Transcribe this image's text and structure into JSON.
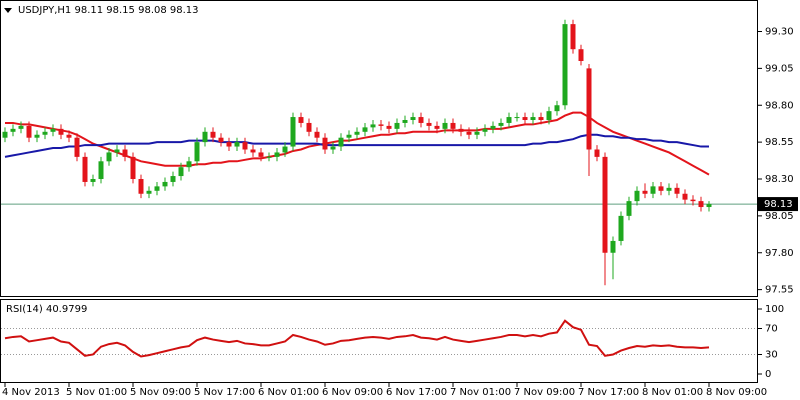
{
  "chart_data": [
    {
      "type": "candlestick",
      "title": "USDJPY,H1  98.11 98.15 98.08 98.13",
      "categories": [
        "4 Nov 2013",
        null,
        null,
        null,
        null,
        null,
        null,
        null,
        "5 Nov 01:00",
        null,
        null,
        null,
        null,
        null,
        null,
        null,
        "5 Nov 09:00",
        null,
        null,
        null,
        null,
        null,
        null,
        null,
        "5 Nov 17:00",
        null,
        null,
        null,
        null,
        null,
        null,
        null,
        "6 Nov 01:00",
        null,
        null,
        null,
        null,
        null,
        null,
        null,
        "6 Nov 09:00",
        null,
        null,
        null,
        null,
        null,
        null,
        null,
        "6 Nov 17:00",
        null,
        null,
        null,
        null,
        null,
        null,
        null,
        "7 Nov 01:00",
        null,
        null,
        null,
        null,
        null,
        null,
        null,
        "7 Nov 09:00",
        null,
        null,
        null,
        null,
        null,
        null,
        null,
        "7 Nov 17:00",
        null,
        null,
        null,
        null,
        null,
        null,
        null,
        "8 Nov 01:00",
        null,
        null,
        null,
        null,
        null,
        null,
        null,
        "8 Nov 09:00"
      ],
      "open": [
        98.58,
        98.62,
        98.64,
        98.66,
        98.58,
        98.6,
        98.62,
        98.64,
        98.6,
        98.58,
        98.45,
        98.28,
        98.3,
        98.42,
        98.48,
        98.5,
        98.45,
        98.3,
        98.2,
        98.22,
        98.25,
        98.28,
        98.32,
        98.38,
        98.42,
        98.55,
        98.62,
        98.58,
        98.55,
        98.52,
        98.55,
        98.5,
        98.48,
        98.45,
        98.45,
        98.48,
        98.52,
        98.72,
        98.68,
        98.62,
        98.58,
        98.5,
        98.52,
        98.58,
        98.6,
        98.62,
        98.65,
        98.67,
        98.66,
        98.64,
        98.68,
        98.7,
        98.72,
        98.68,
        98.66,
        98.64,
        98.68,
        98.64,
        98.62,
        98.6,
        98.62,
        98.64,
        98.66,
        98.68,
        98.72,
        98.72,
        98.7,
        98.72,
        98.7,
        98.76,
        98.8,
        99.35,
        99.18,
        99.05,
        98.5,
        98.45,
        97.8,
        97.88,
        98.05,
        98.15,
        98.22,
        98.2,
        98.25,
        98.22,
        98.24,
        98.2,
        98.16,
        98.15,
        98.11
      ],
      "high": [
        98.65,
        98.67,
        98.69,
        98.69,
        98.63,
        98.65,
        98.67,
        98.67,
        98.63,
        98.61,
        98.48,
        98.33,
        98.45,
        98.51,
        98.53,
        98.53,
        98.48,
        98.33,
        98.25,
        98.28,
        98.31,
        98.35,
        98.41,
        98.45,
        98.58,
        98.65,
        98.65,
        98.61,
        98.58,
        98.58,
        98.58,
        98.53,
        98.51,
        98.48,
        98.51,
        98.55,
        98.75,
        98.75,
        98.71,
        98.65,
        98.61,
        98.55,
        98.61,
        98.63,
        98.65,
        98.68,
        98.7,
        98.7,
        98.69,
        98.71,
        98.73,
        98.75,
        98.75,
        98.71,
        98.69,
        98.71,
        98.71,
        98.67,
        98.65,
        98.65,
        98.67,
        98.69,
        98.71,
        98.75,
        98.75,
        98.75,
        98.75,
        98.75,
        98.79,
        98.83,
        99.38,
        99.38,
        99.21,
        99.08,
        98.53,
        98.48,
        97.91,
        98.08,
        98.18,
        98.25,
        98.27,
        98.28,
        98.28,
        98.27,
        98.27,
        98.23,
        98.19,
        98.18,
        98.15
      ],
      "low": [
        98.55,
        98.59,
        98.61,
        98.55,
        98.55,
        98.57,
        98.59,
        98.57,
        98.55,
        98.42,
        98.25,
        98.25,
        98.27,
        98.39,
        98.45,
        98.42,
        98.27,
        98.17,
        98.17,
        98.19,
        98.22,
        98.25,
        98.29,
        98.35,
        98.39,
        98.52,
        98.55,
        98.52,
        98.49,
        98.49,
        98.47,
        98.45,
        98.42,
        98.42,
        98.42,
        98.45,
        98.49,
        98.65,
        98.59,
        98.55,
        98.47,
        98.47,
        98.49,
        98.55,
        98.57,
        98.59,
        98.62,
        98.63,
        98.61,
        98.61,
        98.65,
        98.67,
        98.65,
        98.63,
        98.61,
        98.61,
        98.61,
        98.59,
        98.57,
        98.57,
        98.59,
        98.61,
        98.63,
        98.65,
        98.69,
        98.67,
        98.67,
        98.67,
        98.67,
        98.73,
        98.77,
        99.15,
        99.07,
        98.32,
        98.42,
        97.58,
        97.62,
        97.85,
        98.02,
        98.12,
        98.17,
        98.17,
        98.19,
        98.19,
        98.17,
        98.13,
        98.12,
        98.08,
        98.08
      ],
      "close": [
        98.62,
        98.64,
        98.66,
        98.58,
        98.6,
        98.62,
        98.64,
        98.6,
        98.58,
        98.45,
        98.28,
        98.3,
        98.42,
        98.48,
        98.5,
        98.45,
        98.3,
        98.2,
        98.22,
        98.25,
        98.28,
        98.32,
        98.38,
        98.42,
        98.55,
        98.62,
        98.58,
        98.55,
        98.52,
        98.55,
        98.5,
        98.48,
        98.45,
        98.45,
        98.48,
        98.52,
        98.72,
        98.68,
        98.62,
        98.58,
        98.5,
        98.52,
        98.58,
        98.6,
        98.62,
        98.65,
        98.67,
        98.66,
        98.64,
        98.68,
        98.7,
        98.72,
        98.68,
        98.66,
        98.64,
        98.68,
        98.64,
        98.62,
        98.6,
        98.62,
        98.64,
        98.66,
        98.68,
        98.72,
        98.72,
        98.7,
        98.72,
        98.7,
        98.76,
        98.8,
        99.35,
        99.18,
        99.1,
        98.5,
        98.45,
        97.8,
        97.88,
        98.05,
        98.15,
        98.22,
        98.2,
        98.25,
        98.22,
        98.24,
        98.2,
        98.16,
        98.15,
        98.11,
        98.13
      ],
      "up_color": "#1fa81f",
      "down_color": "#e3141b",
      "series": [
        {
          "color": "#e3141b",
          "values": [
            98.68,
            98.68,
            98.67,
            98.67,
            98.66,
            98.65,
            98.64,
            98.63,
            98.62,
            98.6,
            98.57,
            98.54,
            98.52,
            98.5,
            98.48,
            98.46,
            98.44,
            98.42,
            98.41,
            98.4,
            98.39,
            98.39,
            98.39,
            98.39,
            98.4,
            98.4,
            98.41,
            98.41,
            98.42,
            98.42,
            98.43,
            98.44,
            98.44,
            98.45,
            98.46,
            98.47,
            98.49,
            98.5,
            98.52,
            98.53,
            98.54,
            98.55,
            98.56,
            98.56,
            98.57,
            98.58,
            98.59,
            98.6,
            98.6,
            98.61,
            98.61,
            98.62,
            98.62,
            98.62,
            98.62,
            98.63,
            98.63,
            98.63,
            98.63,
            98.63,
            98.64,
            98.64,
            98.64,
            98.65,
            98.66,
            98.67,
            98.67,
            98.68,
            98.69,
            98.7,
            98.73,
            98.75,
            98.75,
            98.72,
            98.68,
            98.65,
            98.62,
            98.6,
            98.58,
            98.56,
            98.54,
            98.52,
            98.5,
            98.48,
            98.45,
            98.42,
            98.39,
            98.36,
            98.33
          ]
        },
        {
          "color": "#1818a8",
          "values": [
            98.45,
            98.46,
            98.47,
            98.48,
            98.49,
            98.5,
            98.51,
            98.51,
            98.52,
            98.52,
            98.53,
            98.53,
            98.53,
            98.54,
            98.54,
            98.54,
            98.54,
            98.54,
            98.54,
            98.55,
            98.55,
            98.55,
            98.55,
            98.56,
            98.56,
            98.56,
            98.56,
            98.55,
            98.55,
            98.55,
            98.55,
            98.54,
            98.54,
            98.54,
            98.54,
            98.54,
            98.54,
            98.54,
            98.54,
            98.54,
            98.53,
            98.53,
            98.53,
            98.53,
            98.53,
            98.53,
            98.53,
            98.53,
            98.53,
            98.53,
            98.53,
            98.53,
            98.53,
            98.53,
            98.53,
            98.53,
            98.53,
            98.53,
            98.53,
            98.53,
            98.53,
            98.53,
            98.53,
            98.53,
            98.53,
            98.53,
            98.54,
            98.54,
            98.55,
            98.55,
            98.56,
            98.57,
            98.59,
            98.6,
            98.6,
            98.59,
            98.59,
            98.58,
            98.58,
            98.57,
            98.57,
            98.56,
            98.56,
            98.55,
            98.55,
            98.54,
            98.53,
            98.52,
            98.52
          ]
        }
      ],
      "last_price": 98.13,
      "price_line_color": "#5f9f7f",
      "ylim": [
        97.5,
        99.5
      ],
      "yticks": [
        97.55,
        {
          "value": 97.8,
          "label": "97.80"
        },
        98.05,
        {
          "value": 98.3,
          "label": "98.30"
        },
        98.55,
        {
          "value": 98.8,
          "label": "98.80"
        },
        99.05,
        {
          "value": 99.3,
          "label": "99.30"
        }
      ]
    },
    {
      "type": "line",
      "title": "RSI(14) 40.9799",
      "series": [
        {
          "color": "#d01010",
          "values": [
            55,
            57,
            58,
            50,
            52,
            54,
            56,
            50,
            48,
            38,
            28,
            30,
            42,
            46,
            48,
            44,
            34,
            27,
            29,
            32,
            35,
            38,
            41,
            43,
            52,
            56,
            53,
            51,
            49,
            51,
            47,
            46,
            44,
            44,
            47,
            50,
            60,
            57,
            53,
            50,
            45,
            47,
            51,
            52,
            54,
            56,
            57,
            56,
            54,
            57,
            58,
            60,
            56,
            55,
            53,
            57,
            53,
            51,
            49,
            51,
            53,
            55,
            57,
            60,
            60,
            58,
            60,
            58,
            62,
            64,
            82,
            72,
            68,
            45,
            43,
            28,
            30,
            36,
            40,
            43,
            42,
            44,
            43,
            44,
            42,
            41,
            41,
            40,
            40.9799
          ]
        }
      ],
      "ylim": [
        0,
        100
      ],
      "yticks": [
        0,
        30,
        70,
        100
      ]
    }
  ]
}
